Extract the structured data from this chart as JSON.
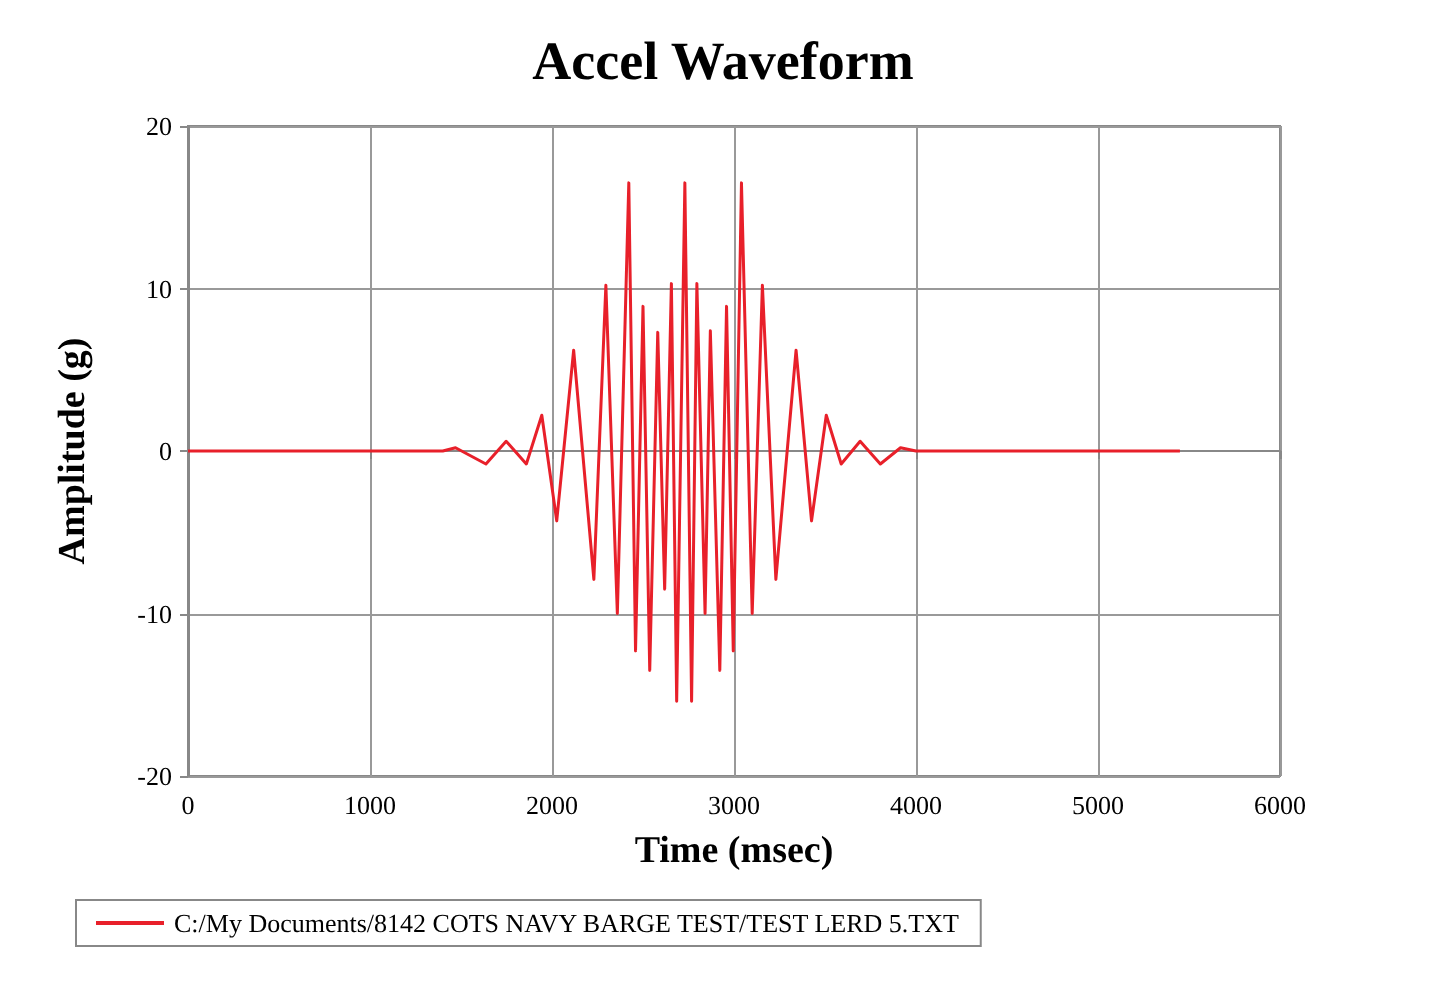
{
  "chart_data": {
    "type": "line",
    "title": "Accel Waveform",
    "xlabel": "Time (msec)",
    "ylabel": "Amplitude (g)",
    "xlim": [
      0,
      6000
    ],
    "xticks": [
      0,
      1000,
      2000,
      3000,
      4000,
      5000,
      6000
    ],
    "ylim": [
      -20,
      20
    ],
    "yticks": [
      -20,
      -10,
      0,
      10,
      20
    ],
    "grid": true,
    "legend": "bottom",
    "marker": "none",
    "line_style": "solid",
    "series": [
      {
        "name": "C:/My Documents/8142 COTS NAVY BARGE TEST/TEST LERD 5.TXT",
        "color": "#e8202a",
        "x": [
          0,
          1400,
          1470,
          1637,
          1748,
          1859,
          1944,
          2026,
          2119,
          2230,
          2296,
          2359,
          2422,
          2459,
          2500,
          2537,
          2581,
          2619,
          2656,
          2685,
          2730,
          2767,
          2796,
          2841,
          2870,
          2922,
          2959,
          2996,
          3041,
          3100,
          3156,
          3230,
          3341,
          3426,
          3507,
          3589,
          3693,
          3804,
          3915,
          4000,
          5450
        ],
        "values": [
          0,
          0,
          0.2,
          -0.8,
          0.6,
          -0.8,
          2.2,
          -4.3,
          6.2,
          -7.9,
          10.2,
          -10,
          16.5,
          -12.3,
          8.9,
          -13.5,
          7.3,
          -8.5,
          10.3,
          -15.4,
          16.5,
          -15.4,
          10.3,
          -10,
          7.4,
          -13.5,
          8.9,
          -12.3,
          16.5,
          -10,
          10.2,
          -7.9,
          6.2,
          -4.3,
          2.2,
          -0.8,
          0.6,
          -0.8,
          0.2,
          0,
          0
        ]
      }
    ]
  }
}
